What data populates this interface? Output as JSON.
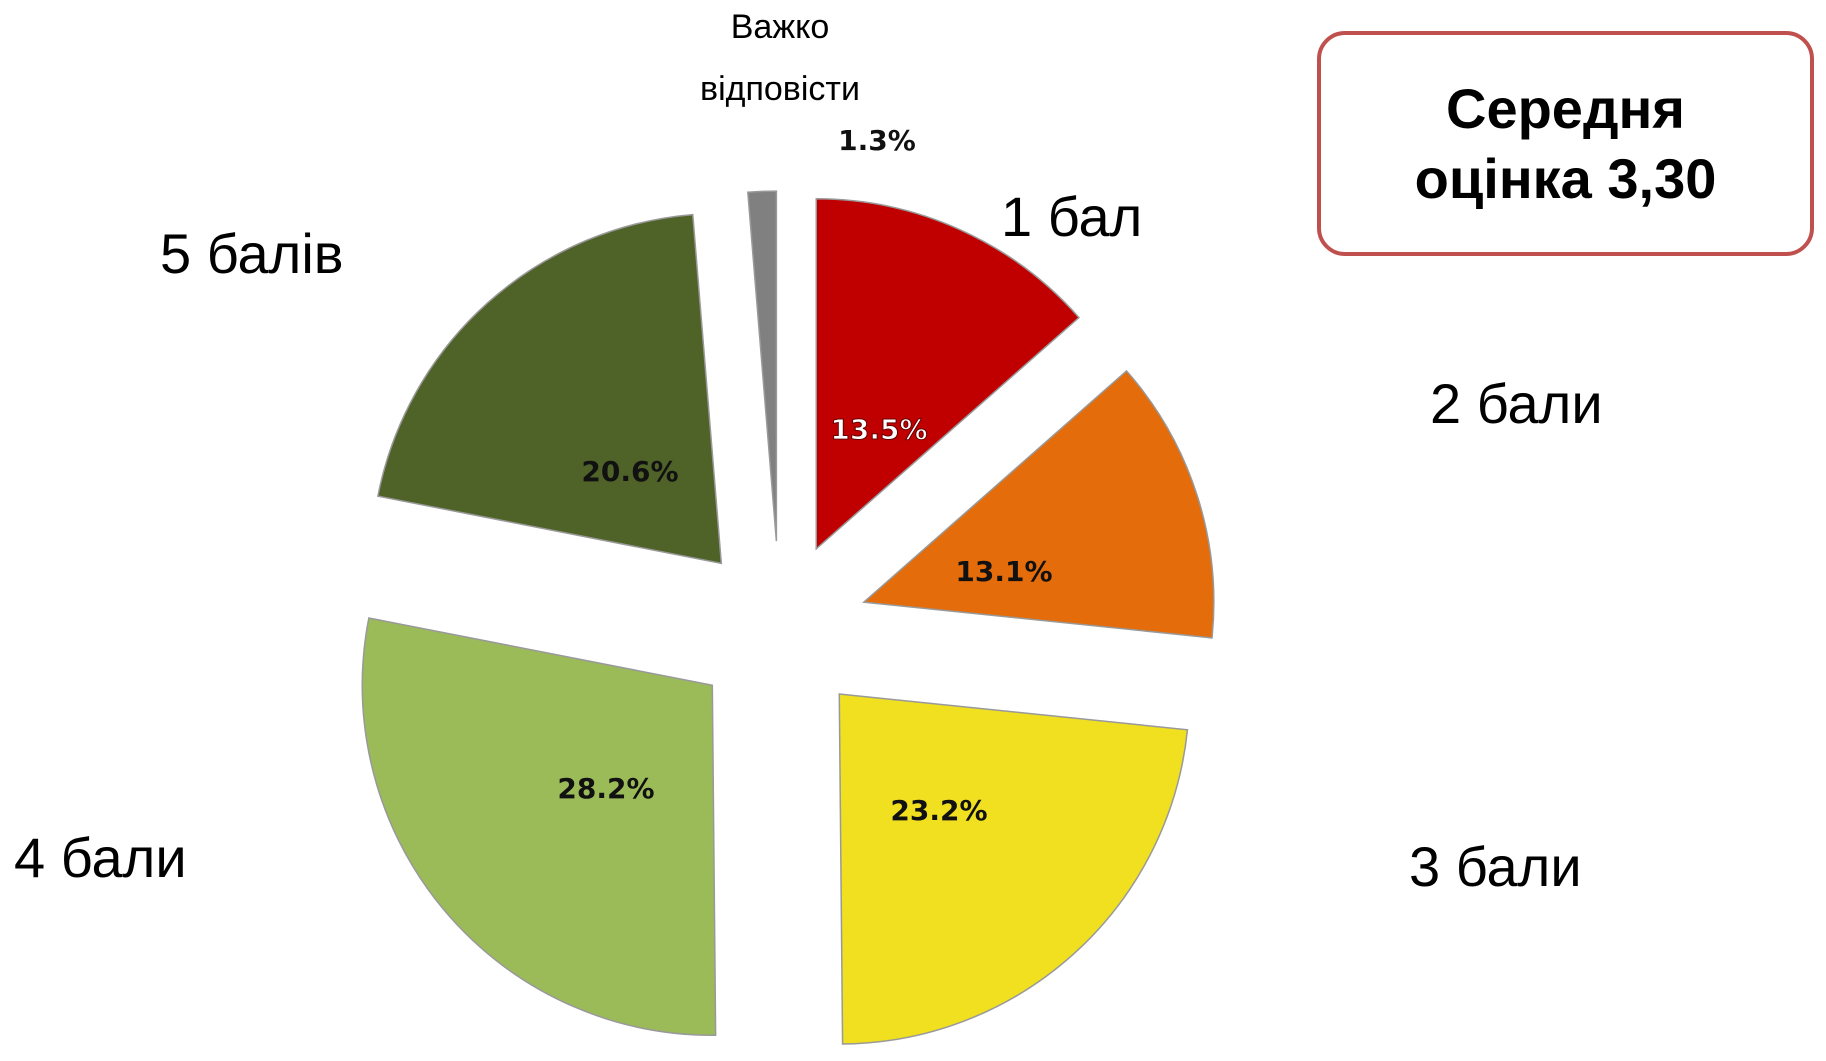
{
  "chart_data": {
    "type": "pie",
    "categories": [
      "1 бал",
      "2 бали",
      "3 бали",
      "4 бали",
      "5 балів",
      "Важко відповісти"
    ],
    "values": [
      13.5,
      13.1,
      23.2,
      28.2,
      20.6,
      1.3
    ],
    "value_labels": [
      "13.5%",
      "13.1%",
      "23.2%",
      "28.2%",
      "20.6%",
      "1.3%"
    ],
    "colors": [
      "#c00000",
      "#e46c0a",
      "#f0e020",
      "#9bbb59",
      "#4f6228",
      "#808080"
    ],
    "annotation": "Середня оцінка 3,30"
  }
}
